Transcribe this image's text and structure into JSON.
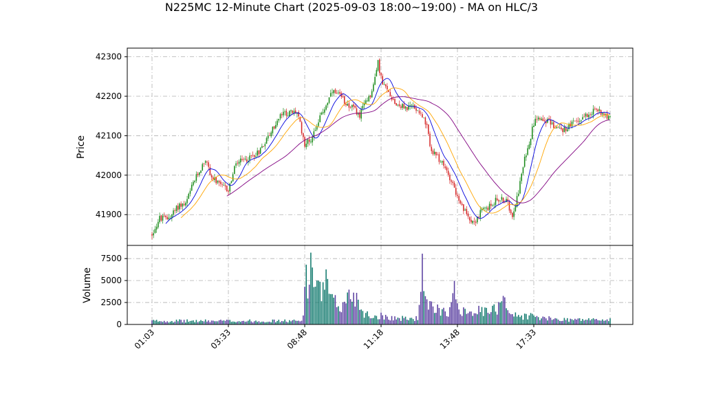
{
  "chart_data": {
    "type": "candlestick",
    "title": "N225MC 12-Minute Chart (2025-09-03 18:00~19:00) - MA on HLC/3",
    "price_axis": {
      "label": "Price",
      "ylim": [
        41822,
        42322
      ],
      "ticks": [
        41900,
        42000,
        42100,
        42200,
        42300
      ]
    },
    "volume_axis": {
      "label": "Volume",
      "ylim": [
        0,
        9000
      ],
      "ticks": [
        0,
        2500,
        5000,
        7500
      ]
    },
    "x_tick_labels": [
      "01:03",
      "03:33",
      "08:48",
      "11:18",
      "13:48",
      "17:33",
      ""
    ],
    "x_tick_positions": [
      0,
      50,
      100,
      150,
      200,
      250,
      300
    ],
    "grid": true,
    "colors": {
      "up": "#1a8a1a",
      "down": "#d62728",
      "vol_up": "#127a6e",
      "vol_down": "#5a3fa0",
      "ma_fast": "#0000dd",
      "ma_mid": "#ffa500",
      "ma_slow": "#800080"
    },
    "price_anchors": [
      [
        0,
        41850
      ],
      [
        5,
        41890
      ],
      [
        10,
        41890
      ],
      [
        14,
        41905
      ],
      [
        18,
        41925
      ],
      [
        22,
        41925
      ],
      [
        27,
        41980
      ],
      [
        31,
        42010
      ],
      [
        35,
        42040
      ],
      [
        39,
        41995
      ],
      [
        44,
        41975
      ],
      [
        50,
        41962
      ],
      [
        55,
        42030
      ],
      [
        62,
        42040
      ],
      [
        70,
        42060
      ],
      [
        78,
        42110
      ],
      [
        85,
        42155
      ],
      [
        95,
        42160
      ],
      [
        100,
        42080
      ],
      [
        104,
        42090
      ],
      [
        108,
        42130
      ],
      [
        113,
        42170
      ],
      [
        118,
        42210
      ],
      [
        123,
        42200
      ],
      [
        128,
        42180
      ],
      [
        132,
        42170
      ],
      [
        136,
        42150
      ],
      [
        140,
        42190
      ],
      [
        144,
        42210
      ],
      [
        148,
        42285
      ],
      [
        151,
        42230
      ],
      [
        155,
        42210
      ],
      [
        160,
        42180
      ],
      [
        167,
        42170
      ],
      [
        171,
        42175
      ],
      [
        176,
        42160
      ],
      [
        180,
        42120
      ],
      [
        183,
        42060
      ],
      [
        188,
        42040
      ],
      [
        193,
        42010
      ],
      [
        197,
        41980
      ],
      [
        201,
        41930
      ],
      [
        206,
        41900
      ],
      [
        211,
        41880
      ],
      [
        216,
        41910
      ],
      [
        221,
        41920
      ],
      [
        226,
        41940
      ],
      [
        232,
        41935
      ],
      [
        236,
        41900
      ],
      [
        240,
        41960
      ],
      [
        244,
        42040
      ],
      [
        248,
        42100
      ],
      [
        251,
        42150
      ],
      [
        255,
        42145
      ],
      [
        260,
        42135
      ],
      [
        265,
        42120
      ],
      [
        270,
        42115
      ],
      [
        275,
        42130
      ],
      [
        280,
        42140
      ],
      [
        285,
        42155
      ],
      [
        290,
        42165
      ],
      [
        295,
        42160
      ],
      [
        300,
        42145
      ]
    ],
    "volume_profile": [
      [
        0,
        400
      ],
      [
        98,
        400
      ],
      [
        99,
        1800
      ],
      [
        100,
        7000
      ],
      [
        102,
        3100
      ],
      [
        104,
        7800
      ],
      [
        105,
        8600
      ],
      [
        106,
        3800
      ],
      [
        110,
        3600
      ],
      [
        114,
        4500
      ],
      [
        118,
        2500
      ],
      [
        125,
        2000
      ],
      [
        128,
        3100
      ],
      [
        132,
        3500
      ],
      [
        134,
        3000
      ],
      [
        136,
        2200
      ],
      [
        138,
        1500
      ],
      [
        143,
        900
      ],
      [
        150,
        1000
      ],
      [
        160,
        700
      ],
      [
        170,
        650
      ],
      [
        174,
        700
      ],
      [
        175,
        2600
      ],
      [
        176,
        5200
      ],
      [
        177,
        6000
      ],
      [
        178,
        2800
      ],
      [
        182,
        1900
      ],
      [
        190,
        1700
      ],
      [
        195,
        1500
      ],
      [
        198,
        3600
      ],
      [
        199,
        3900
      ],
      [
        201,
        1800
      ],
      [
        210,
        1600
      ],
      [
        220,
        1400
      ],
      [
        226,
        1800
      ],
      [
        228,
        3200
      ],
      [
        229,
        4200
      ],
      [
        231,
        2800
      ],
      [
        233,
        2000
      ],
      [
        235,
        1200
      ],
      [
        240,
        900
      ],
      [
        248,
        1000
      ],
      [
        255,
        700
      ],
      [
        265,
        600
      ],
      [
        275,
        550
      ],
      [
        290,
        550
      ],
      [
        300,
        500
      ]
    ],
    "ma_windows": [
      10,
      20,
      50
    ]
  }
}
